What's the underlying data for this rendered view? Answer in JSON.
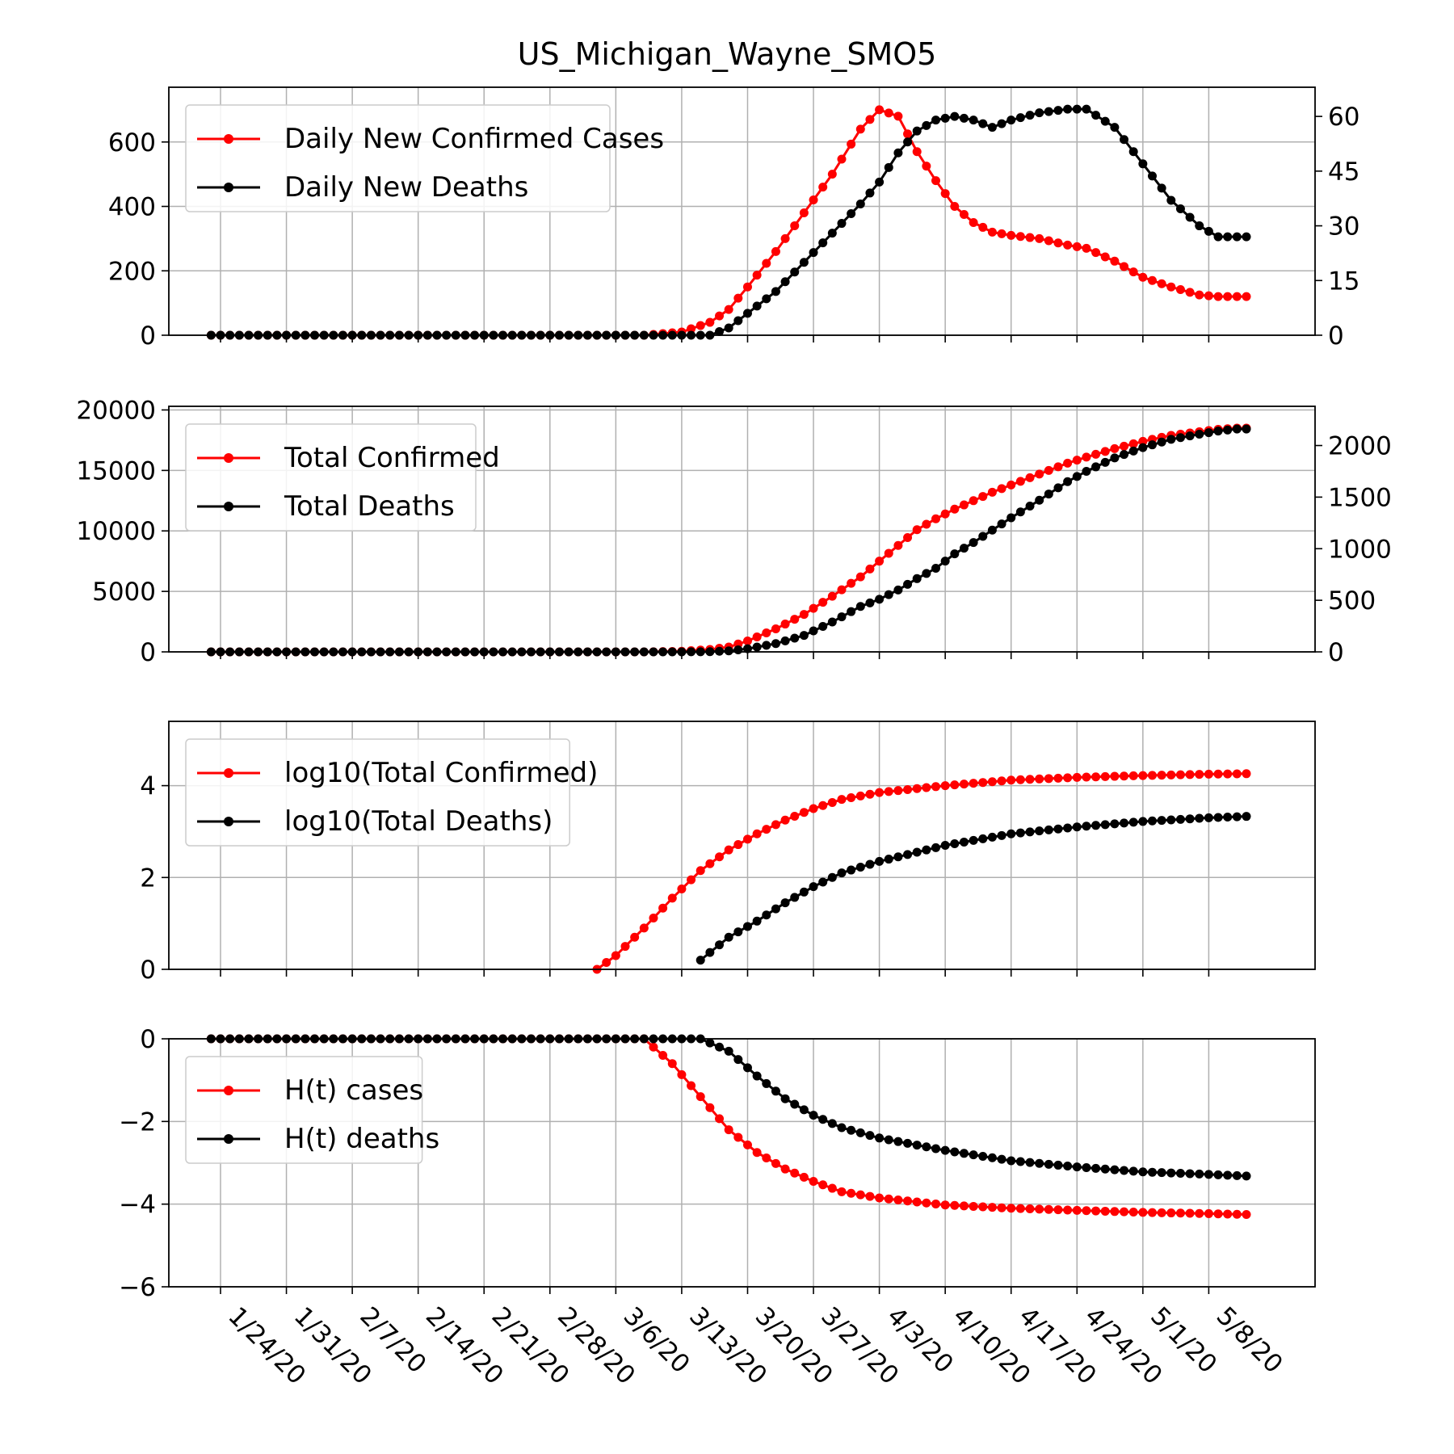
{
  "title": "US_Michigan_Wayne_SMO5",
  "x_dates": [
    "1/24/20",
    "1/31/20",
    "2/7/20",
    "2/14/20",
    "2/21/20",
    "2/28/20",
    "3/6/20",
    "3/13/20",
    "3/20/20",
    "3/27/20",
    "4/3/20",
    "4/10/20",
    "4/17/20",
    "4/24/20",
    "5/1/20",
    "5/8/20"
  ],
  "colors": {
    "cases": "#ff0000",
    "deaths": "#000000",
    "grid": "#b0b0b0"
  },
  "chart_data": [
    {
      "type": "line",
      "x": [
        "1/23/20",
        "1/30/20",
        "2/6/20",
        "2/13/20",
        "2/20/20",
        "2/27/20",
        "3/5/20",
        "3/9/20",
        "3/13/20",
        "3/16/20",
        "3/18/20",
        "3/20/20",
        "3/23/20",
        "3/26/20",
        "3/29/20",
        "4/1/20",
        "4/3/20",
        "4/5/20",
        "4/7/20",
        "4/9/20",
        "4/11/20",
        "4/13/20",
        "4/15/20",
        "4/17/20",
        "4/20/20",
        "4/23/20",
        "4/25/20",
        "4/28/20",
        "5/1/20",
        "5/4/20",
        "5/7/20",
        "5/9/20",
        "5/11/20",
        "5/12/20"
      ],
      "series": [
        {
          "name": "Daily New Confirmed Cases",
          "axis": "left",
          "values": [
            0,
            0,
            0,
            0,
            0,
            0,
            0,
            0,
            10,
            40,
            80,
            150,
            260,
            380,
            500,
            640,
            700,
            680,
            570,
            480,
            400,
            350,
            320,
            310,
            300,
            280,
            270,
            230,
            180,
            150,
            125,
            120,
            120,
            120
          ]
        },
        {
          "name": "Daily New Deaths",
          "axis": "right",
          "values": [
            0,
            0,
            0,
            0,
            0,
            0,
            0,
            0,
            0,
            0,
            2,
            6,
            12,
            20,
            28,
            36,
            42,
            50,
            56,
            59,
            60,
            59,
            57,
            59,
            61,
            62,
            62,
            57,
            47,
            37,
            30,
            27,
            27,
            27
          ]
        }
      ],
      "ylim_left": [
        0,
        770
      ],
      "yticks_left": [
        0,
        200,
        400,
        600
      ],
      "ylim_right": [
        0,
        68
      ],
      "yticks_right": [
        0,
        15,
        30,
        45,
        60
      ],
      "legend": "top-left",
      "grid": true
    },
    {
      "type": "line",
      "x": [
        "1/23/20",
        "1/30/20",
        "2/6/20",
        "2/13/20",
        "2/20/20",
        "2/27/20",
        "3/5/20",
        "3/9/20",
        "3/13/20",
        "3/16/20",
        "3/18/20",
        "3/20/20",
        "3/23/20",
        "3/26/20",
        "3/29/20",
        "4/1/20",
        "4/3/20",
        "4/5/20",
        "4/7/20",
        "4/9/20",
        "4/11/20",
        "4/13/20",
        "4/15/20",
        "4/17/20",
        "4/20/20",
        "4/23/20",
        "4/25/20",
        "4/28/20",
        "5/1/20",
        "5/4/20",
        "5/7/20",
        "5/9/20",
        "5/11/20",
        "5/12/20"
      ],
      "series": [
        {
          "name": "Total Confirmed",
          "axis": "left",
          "values": [
            0,
            0,
            0,
            0,
            0,
            0,
            0,
            0,
            50,
            200,
            400,
            900,
            1900,
            3100,
            4600,
            6200,
            7500,
            8800,
            10100,
            11000,
            11800,
            12500,
            13200,
            13800,
            14700,
            15600,
            16100,
            16800,
            17400,
            17900,
            18200,
            18400,
            18500,
            18500
          ]
        },
        {
          "name": "Total Deaths",
          "axis": "right",
          "values": [
            0,
            0,
            0,
            0,
            0,
            0,
            0,
            0,
            0,
            2,
            10,
            30,
            80,
            160,
            290,
            440,
            510,
            600,
            710,
            810,
            950,
            1060,
            1180,
            1300,
            1470,
            1650,
            1750,
            1880,
            1980,
            2060,
            2110,
            2140,
            2160,
            2160
          ]
        }
      ],
      "ylim_left": [
        0,
        20300
      ],
      "yticks_left": [
        0,
        5000,
        10000,
        15000,
        20000
      ],
      "ylim_right": [
        0,
        2380
      ],
      "yticks_right": [
        0,
        500,
        1000,
        1500,
        2000
      ],
      "legend": "top-left",
      "grid": true
    },
    {
      "type": "line",
      "x": [
        "3/4/20",
        "3/6/20",
        "3/9/20",
        "3/12/20",
        "3/15/20",
        "3/18/20",
        "3/21/20",
        "3/24/20",
        "3/27/20",
        "3/30/20",
        "4/3/20",
        "4/10/20",
        "4/17/20",
        "4/24/20",
        "5/1/20",
        "5/8/20",
        "5/12/20"
      ],
      "series": [
        {
          "name": "log10(Total Confirmed)",
          "values": [
            0.0,
            0.3,
            0.9,
            1.55,
            2.15,
            2.6,
            2.95,
            3.25,
            3.5,
            3.7,
            3.85,
            4.0,
            4.12,
            4.18,
            4.22,
            4.25,
            4.26
          ]
        },
        {
          "name": "log10(Total Deaths)",
          "values": [
            null,
            null,
            null,
            null,
            0.2,
            0.7,
            1.05,
            1.45,
            1.8,
            2.1,
            2.35,
            2.7,
            2.95,
            3.1,
            3.22,
            3.3,
            3.33
          ]
        }
      ],
      "ylim": [
        0,
        5.4
      ],
      "yticks": [
        0,
        2,
        4
      ],
      "legend": "top-left",
      "grid": true
    },
    {
      "type": "line",
      "x": [
        "1/23/20",
        "1/30/20",
        "2/6/20",
        "2/13/20",
        "2/20/20",
        "2/27/20",
        "3/5/20",
        "3/9/20",
        "3/12/20",
        "3/15/20",
        "3/18/20",
        "3/21/20",
        "3/24/20",
        "3/27/20",
        "3/30/20",
        "4/3/20",
        "4/10/20",
        "4/17/20",
        "4/24/20",
        "5/1/20",
        "5/8/20",
        "5/12/20"
      ],
      "series": [
        {
          "name": "H(t) cases",
          "values": [
            0,
            0,
            0,
            0,
            0,
            0,
            0,
            0,
            -0.6,
            -1.4,
            -2.2,
            -2.75,
            -3.15,
            -3.45,
            -3.7,
            -3.85,
            -4.02,
            -4.1,
            -4.15,
            -4.2,
            -4.23,
            -4.25
          ]
        },
        {
          "name": "H(t) deaths",
          "values": [
            0,
            0,
            0,
            0,
            0,
            0,
            0,
            0,
            0,
            0,
            -0.3,
            -0.9,
            -1.45,
            -1.85,
            -2.15,
            -2.4,
            -2.7,
            -2.95,
            -3.1,
            -3.22,
            -3.28,
            -3.32
          ]
        }
      ],
      "ylim": [
        -6,
        0
      ],
      "yticks": [
        -6,
        -4,
        -2,
        0
      ],
      "legend": "top-left",
      "grid": true
    }
  ]
}
